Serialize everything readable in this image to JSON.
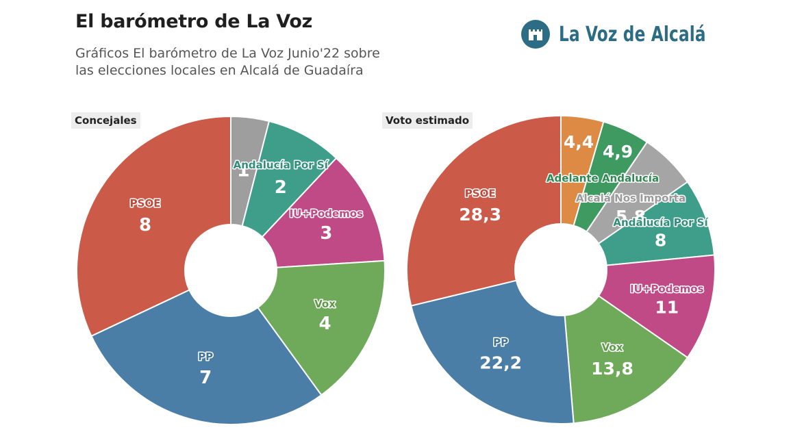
{
  "header": {
    "title": "El barómetro de La Voz",
    "subtitle_line1": "Gráficos El barómetro de La Voz Junio'22 sobre",
    "subtitle_line2": "las elecciones locales en Alcalá de Guadaíra"
  },
  "logo": {
    "text": "La Voz de Alcalá",
    "icon": "castle-tower-icon",
    "color": "#2c6c84"
  },
  "chart_data": [
    {
      "type": "pie",
      "title": "Concejales",
      "donut": true,
      "slices": [
        {
          "label": "",
          "value": 1,
          "display": "1",
          "color": "#9e9e9e"
        },
        {
          "label": "Andalucía Por Sí",
          "value": 2,
          "display": "2",
          "color": "#3e9e8a",
          "label_color": "#2f8f7b"
        },
        {
          "label": "IU+Podemos",
          "value": 3,
          "display": "3",
          "color": "#c04a86",
          "label_color": "#c04a86"
        },
        {
          "label": "Vox",
          "value": 4,
          "display": "4",
          "color": "#6fa95a",
          "label_color": "#5c9a48"
        },
        {
          "label": "PP",
          "value": 7,
          "display": "7",
          "color": "#4a7ea6",
          "label_color": "#3f739c"
        },
        {
          "label": "PSOE",
          "value": 8,
          "display": "8",
          "color": "#cb5a48",
          "label_color": "#c0493b"
        }
      ]
    },
    {
      "type": "pie",
      "title": "Voto estimado",
      "donut": true,
      "slices": [
        {
          "label": "",
          "value": 4.4,
          "display": "4,4",
          "color": "#dd8a44"
        },
        {
          "label": "Adelante Andalucía",
          "value": 4.9,
          "display": "4,9",
          "color": "#3f9a62",
          "label_color": "#2f8a52"
        },
        {
          "label": "Alcalá Nos Importa",
          "value": 5.8,
          "display": "5,8",
          "color": "#a5a5a5",
          "label_color": "#9a9a9a"
        },
        {
          "label": "Andalucía Por Sí",
          "value": 8,
          "display": "8",
          "color": "#3e9e8a",
          "label_color": "#2f8f7b"
        },
        {
          "label": "IU+Podemos",
          "value": 11,
          "display": "11",
          "color": "#c04a86",
          "label_color": "#c04a86"
        },
        {
          "label": "Vox",
          "value": 13.8,
          "display": "13,8",
          "color": "#6fa95a",
          "label_color": "#5c9a48"
        },
        {
          "label": "PP",
          "value": 22.2,
          "display": "22,2",
          "color": "#4a7ea6",
          "label_color": "#3f739c"
        },
        {
          "label": "PSOE",
          "value": 28.3,
          "display": "28,3",
          "color": "#cb5a48",
          "label_color": "#c0493b"
        }
      ]
    }
  ]
}
